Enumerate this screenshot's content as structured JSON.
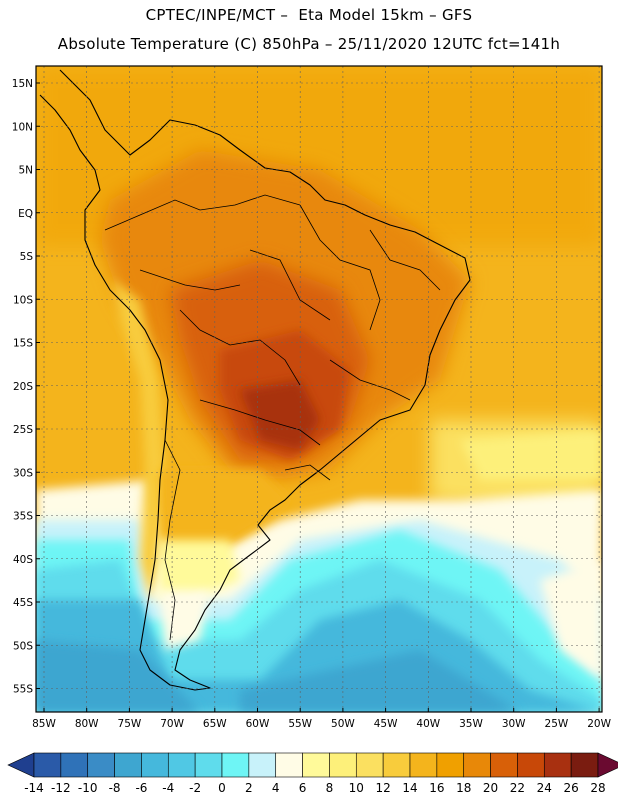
{
  "header": {
    "line1": "CPTEC/INPE/MCT –  Eta Model 15km – GFS",
    "line2": "Absolute Temperature (C) 850hPa – 25/11/2020 12UTC fct=141h"
  },
  "axes": {
    "lat_labels": [
      "15N",
      "10N",
      "5N",
      "EQ",
      "5S",
      "10S",
      "15S",
      "20S",
      "25S",
      "30S",
      "35S",
      "40S",
      "45S",
      "50S",
      "55S"
    ],
    "lon_labels": [
      "85W",
      "80W",
      "75W",
      "70W",
      "65W",
      "60W",
      "55W",
      "50W",
      "45W",
      "40W",
      "35W",
      "30W",
      "25W",
      "20W"
    ]
  },
  "colorbar": {
    "labels": [
      "-14",
      "-12",
      "-10",
      "-8",
      "-6",
      "-4",
      "-2",
      "0",
      "2",
      "4",
      "6",
      "8",
      "10",
      "12",
      "14",
      "16",
      "18",
      "20",
      "22",
      "24",
      "26",
      "28"
    ],
    "colors": [
      "#1f3f8f",
      "#2a5aa8",
      "#2f72b8",
      "#3a8cc6",
      "#3ea6d0",
      "#45b8dc",
      "#50c8e4",
      "#5fdcec",
      "#6ef5f5",
      "#c8f2fa",
      "#fffce6",
      "#fffa9a",
      "#fdf07a",
      "#fbe060",
      "#f8cc3c",
      "#f4b41c",
      "#f0a000",
      "#e88808",
      "#d86008",
      "#c84808",
      "#a83010",
      "#7a1c10",
      "#6a0a30"
    ]
  }
}
